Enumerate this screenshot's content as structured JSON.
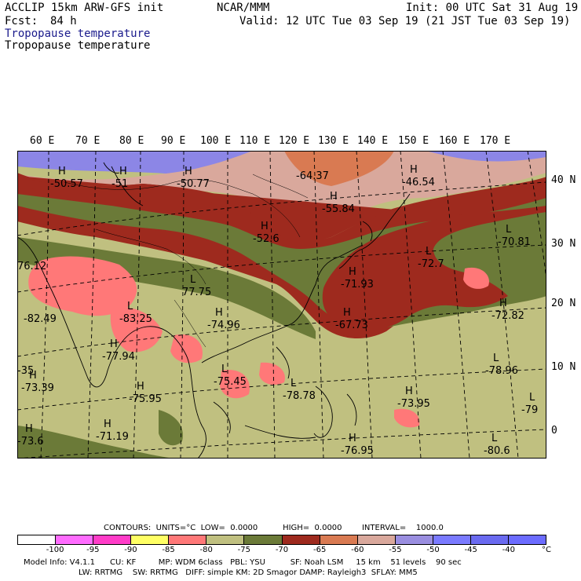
{
  "header": {
    "left1": "ACCLIP 15km ARW-GFS init",
    "center1": "NCAR/MMM",
    "right1": "Init: 00 UTC Sat 31 Aug 19",
    "fcst_label": "Fcst:",
    "fcst_value": "84 h",
    "valid": "Valid: 12 UTC Tue 03 Sep 19 (21 JST Tue 03 Sep 19)",
    "field1": "Tropopause temperature",
    "field2": "Tropopause temperature"
  },
  "map": {
    "lon_labels": [
      "60 E",
      "70 E",
      "80 E",
      "90 E",
      "100 E",
      "110 E",
      "120 E",
      "130 E",
      "140 E",
      "150 E",
      "160 E",
      "170 E"
    ],
    "lat_labels": [
      "40 N",
      "30 N",
      "20 N",
      "10 N",
      "0"
    ],
    "pressure_labels": [
      {
        "mark": "H",
        "value": "-50.57"
      },
      {
        "mark": "H",
        "value": "-51"
      },
      {
        "mark": "H",
        "value": "-50.77"
      },
      {
        "mark": "",
        "value": "-64.37"
      },
      {
        "mark": "H",
        "value": "-46.54"
      },
      {
        "mark": "H",
        "value": "-55.84"
      },
      {
        "mark": "H",
        "value": "-52.6"
      },
      {
        "mark": "",
        "value": "76.12"
      },
      {
        "mark": "L",
        "value": "-70.81"
      },
      {
        "mark": "L",
        "value": "-72.7"
      },
      {
        "mark": "",
        "value": "-82.49"
      },
      {
        "mark": "L",
        "value": "77.75"
      },
      {
        "mark": "H",
        "value": "-71.93"
      },
      {
        "mark": "L",
        "value": "-83.25"
      },
      {
        "mark": "H",
        "value": "-74.96"
      },
      {
        "mark": "H",
        "value": "-67.73"
      },
      {
        "mark": "H",
        "value": "-72.82"
      },
      {
        "mark": "",
        "value": "-35"
      },
      {
        "mark": "H",
        "value": "-77.94"
      },
      {
        "mark": "L",
        "value": "-78.96"
      },
      {
        "mark": "H",
        "value": "-73.39"
      },
      {
        "mark": "L",
        "value": "-75.45"
      },
      {
        "mark": "H",
        "value": "-75.95"
      },
      {
        "mark": "L",
        "value": "-78.78"
      },
      {
        "mark": "H",
        "value": "-73.95"
      },
      {
        "mark": "L",
        "value": "-79"
      },
      {
        "mark": "H",
        "value": "-73.6"
      },
      {
        "mark": "H",
        "value": "-71.19"
      },
      {
        "mark": "H",
        "value": "-76.95"
      },
      {
        "mark": "L",
        "value": "-80.6"
      }
    ]
  },
  "legend": {
    "contours_line": "CONTOURS:  UNITS=°C  LOW=  0.0000          HIGH=  0.0000        INTERVAL=    1000.0",
    "colors": [
      "#ffffff",
      "#ff6cff",
      "#ff3cc8",
      "#ffff64",
      "#ff7878",
      "#c0c080",
      "#6b7a38",
      "#9e2a1e",
      "#d97a52",
      "#d9a89c",
      "#9a8ee0",
      "#7a7aff",
      "#6a6af0",
      "#6c6cff"
    ],
    "ticks": [
      "-100",
      "-95",
      "-90",
      "-85",
      "-80",
      "-75",
      "-70",
      "-65",
      "-60",
      "-55",
      "-50",
      "-45",
      "-40",
      "°C"
    ]
  },
  "footer": {
    "line1": "Model Info: V4.1.1      CU: KF         MP: WDM 6class   PBL: YSU          SF: Noah LSM     15 km    51 levels    90 sec",
    "line2": "LW: RRTMG    SW: RRTMG   DIFF: simple KM: 2D Smagor DAMP: Rayleigh3  SFLAY: MM5"
  }
}
